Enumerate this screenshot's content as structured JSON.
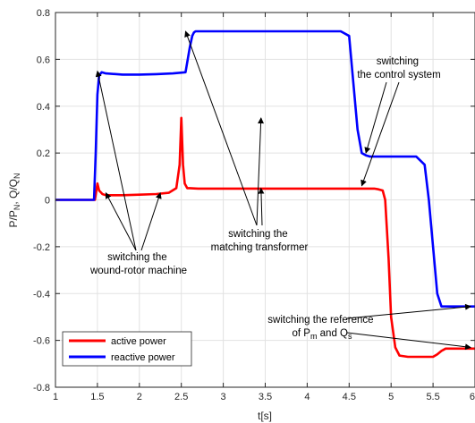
{
  "chart_data": {
    "type": "line",
    "xlabel": "t[s]",
    "ylabel_parts": [
      "P/P",
      "N",
      ", Q/Q",
      "N"
    ],
    "xlim": [
      1,
      6
    ],
    "ylim": [
      -0.8,
      0.8
    ],
    "x_ticks": [
      1,
      1.5,
      2,
      2.5,
      3,
      3.5,
      4,
      4.5,
      5,
      5.5,
      6
    ],
    "x_tick_labels": [
      "1",
      "1.5",
      "2",
      "2.5",
      "3",
      "3.5",
      "4",
      "4.5",
      "5",
      "5.5",
      "6"
    ],
    "y_ticks": [
      -0.8,
      -0.6,
      -0.4,
      -0.2,
      0,
      0.2,
      0.4,
      0.6,
      0.8
    ],
    "y_tick_labels": [
      "-0.8",
      "-0.6",
      "-0.4",
      "-0.2",
      "0",
      "0.2",
      "0.4",
      "0.6",
      "0.8"
    ],
    "grid": true,
    "legend_position": "bottom-left",
    "series": [
      {
        "name": "active power",
        "color": "#ff0000",
        "x": [
          1.0,
          1.47,
          1.5,
          1.52,
          1.56,
          1.6,
          1.8,
          2.0,
          2.2,
          2.35,
          2.44,
          2.48,
          2.5,
          2.52,
          2.54,
          2.57,
          2.6,
          2.7,
          3.0,
          3.5,
          4.0,
          4.5,
          4.8,
          4.85,
          4.9,
          4.93,
          4.97,
          5.0,
          5.05,
          5.1,
          5.2,
          5.4,
          5.5,
          5.55,
          5.6,
          5.65,
          5.7,
          6.0
        ],
        "y": [
          0.0,
          0.0,
          0.07,
          0.04,
          0.025,
          0.02,
          0.02,
          0.022,
          0.025,
          0.03,
          0.05,
          0.15,
          0.35,
          0.15,
          0.07,
          0.05,
          0.05,
          0.048,
          0.048,
          0.048,
          0.048,
          0.048,
          0.048,
          0.045,
          0.04,
          0.0,
          -0.25,
          -0.5,
          -0.63,
          -0.665,
          -0.67,
          -0.67,
          -0.67,
          -0.66,
          -0.645,
          -0.635,
          -0.635,
          -0.635
        ]
      },
      {
        "name": "reactive power",
        "color": "#0000ff",
        "x": [
          1.0,
          1.46,
          1.48,
          1.5,
          1.52,
          1.55,
          1.6,
          1.8,
          2.0,
          2.2,
          2.4,
          2.55,
          2.6,
          2.63,
          2.65,
          2.67,
          2.7,
          3.0,
          3.5,
          4.0,
          4.4,
          4.5,
          4.55,
          4.6,
          4.65,
          4.7,
          4.75,
          5.0,
          5.3,
          5.4,
          5.45,
          5.5,
          5.55,
          5.6,
          5.7,
          6.0
        ],
        "y": [
          0.0,
          0.0,
          0.2,
          0.45,
          0.53,
          0.545,
          0.54,
          0.535,
          0.535,
          0.537,
          0.54,
          0.545,
          0.65,
          0.7,
          0.715,
          0.72,
          0.72,
          0.72,
          0.72,
          0.72,
          0.72,
          0.7,
          0.5,
          0.3,
          0.2,
          0.19,
          0.185,
          0.185,
          0.185,
          0.15,
          0.0,
          -0.2,
          -0.4,
          -0.455,
          -0.455,
          -0.455
        ]
      }
    ],
    "annotations": [
      {
        "lines": [
          "switching the",
          "wound-rotor machine"
        ],
        "targets": [
          [
            1.5,
            0.55
          ],
          [
            1.6,
            0.03
          ],
          [
            2.25,
            0.03
          ]
        ]
      },
      {
        "lines": [
          "switching the",
          "matching transformer"
        ],
        "targets": [
          [
            2.55,
            0.72
          ],
          [
            3.45,
            0.35
          ],
          [
            3.45,
            0.05
          ]
        ]
      },
      {
        "lines": [
          "switching",
          "the control system"
        ],
        "targets": [
          [
            4.7,
            0.2
          ],
          [
            4.65,
            0.06
          ]
        ]
      },
      {
        "lines": [
          "switching the reference",
          "of P",
          "m",
          " and Q",
          "s"
        ],
        "targets": [
          [
            5.95,
            -0.455
          ],
          [
            5.95,
            -0.63
          ]
        ]
      }
    ]
  }
}
